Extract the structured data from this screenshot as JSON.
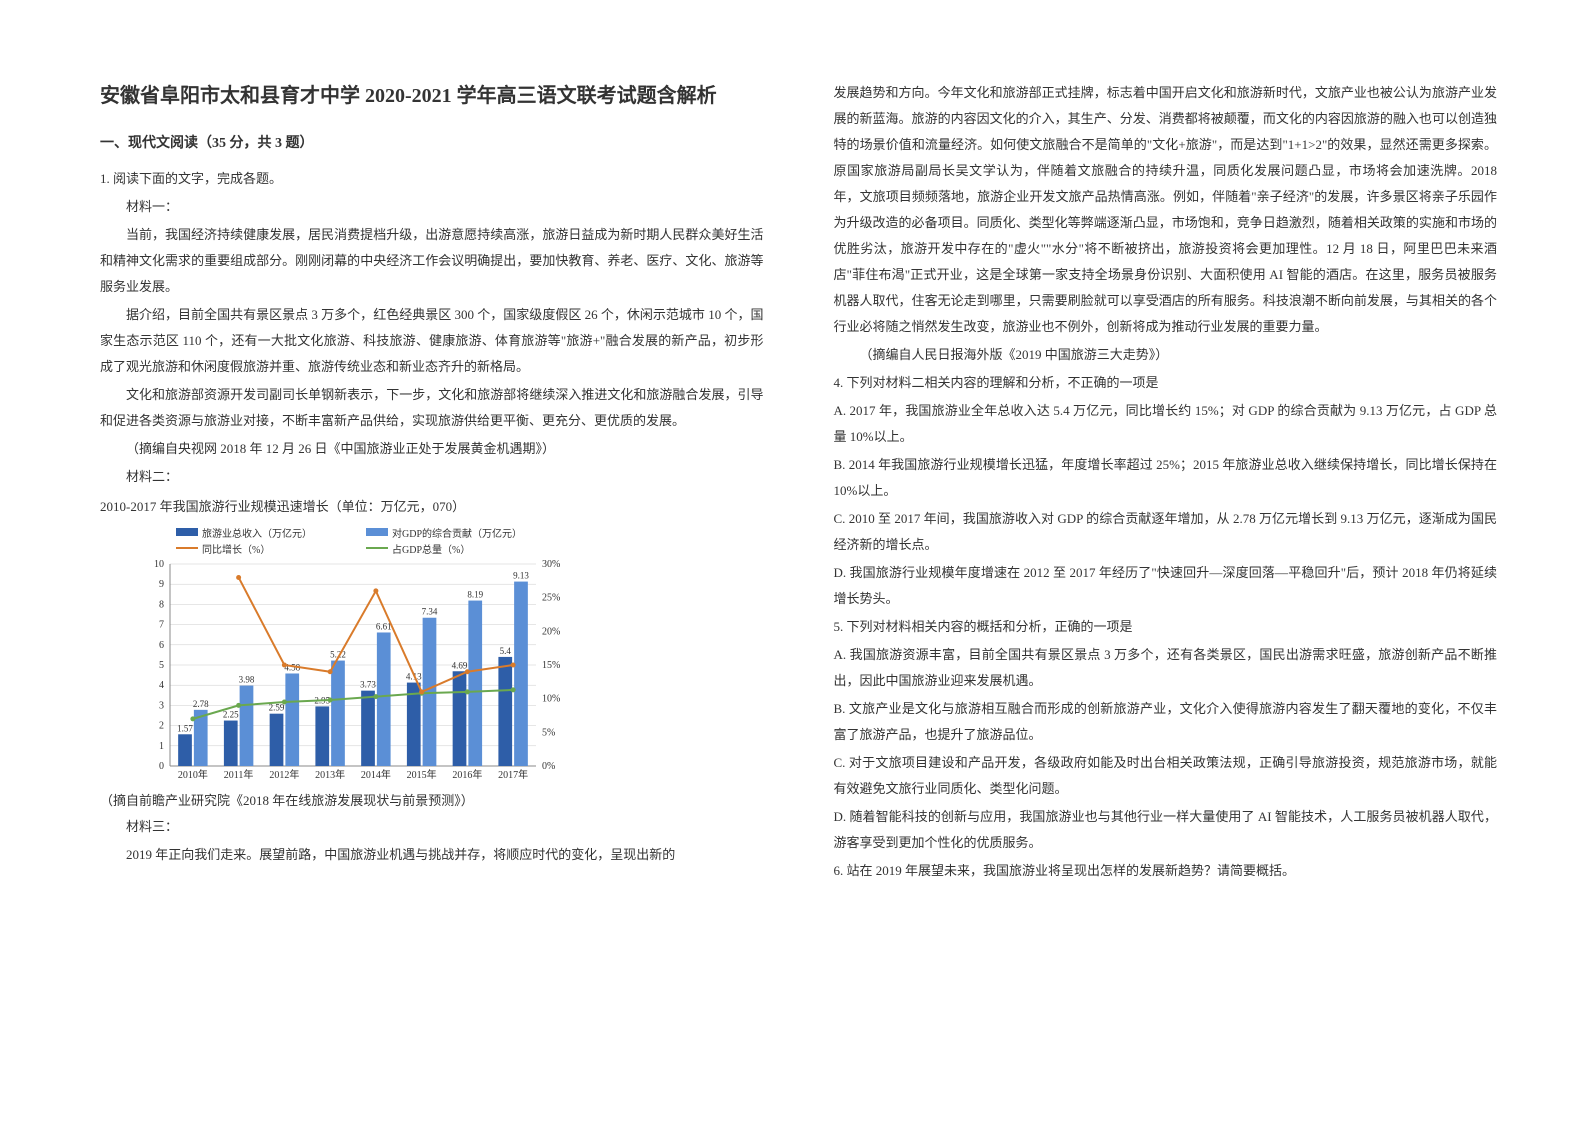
{
  "title": "安徽省阜阳市太和县育才中学 2020-2021 学年高三语文联考试题含解析",
  "section1": "一、现代文阅读（35 分，共 3 题）",
  "q1_intro": "1. 阅读下面的文字，完成各题。",
  "m1_label": "材料一：",
  "m1_p1": "当前，我国经济持续健康发展，居民消费提档升级，出游意愿持续高涨，旅游日益成为新时期人民群众美好生活和精神文化需求的重要组成部分。刚刚闭幕的中央经济工作会议明确提出，要加快教育、养老、医疗、文化、旅游等服务业发展。",
  "m1_p2": "据介绍，目前全国共有景区景点 3 万多个，红色经典景区 300 个，国家级度假区 26 个，休闲示范城市 10 个，国家生态示范区 110 个，还有一大批文化旅游、科技旅游、健康旅游、体育旅游等\"旅游+\"融合发展的新产品，初步形成了观光旅游和休闲度假旅游并重、旅游传统业态和新业态齐升的新格局。",
  "m1_p3": "文化和旅游部资源开发司副司长单钢新表示，下一步，文化和旅游部将继续深入推进文化和旅游融合发展，引导和促进各类资源与旅游业对接，不断丰富新产品供给，实现旅游供给更平衡、更充分、更优质的发展。",
  "m1_cite": "（摘编自央视网 2018 年 12 月 26 日《中国旅游业正处于发展黄金机遇期》）",
  "m2_label": "材料二：",
  "m2_caption": "2010-2017 年我国旅游行业规模迅速增长（单位：万亿元，070）",
  "m2_cite": "（摘自前瞻产业研究院《2018 年在线旅游发展现状与前景预测》）",
  "m3_label": "材料三：",
  "m3_p1_left": "2019 年正向我们走来。展望前路，中国旅游业机遇与挑战并存，将顺应时代的变化，呈现出新的",
  "m3_p1_right": "发展趋势和方向。今年文化和旅游部正式挂牌，标志着中国开启文化和旅游新时代，文旅产业也被公认为旅游产业发展的新蓝海。旅游的内容因文化的介入，其生产、分发、消费都将被颠覆，而文化的内容因旅游的融入也可以创造独特的场景价值和流量经济。如何使文旅融合不是简单的\"文化+旅游\"，而是达到\"1+1>2\"的效果，显然还需更多探索。原国家旅游局副局长吴文学认为，伴随着文旅融合的持续升温，同质化发展问题凸显，市场将会加速洗牌。2018 年，文旅项目频频落地，旅游企业开发文旅产品热情高涨。例如，伴随着\"亲子经济\"的发展，许多景区将亲子乐园作为升级改造的必备项目。同质化、类型化等弊端逐渐凸显，市场饱和，竞争日趋激烈，随着相关政策的实施和市场的优胜劣汰，旅游开发中存在的\"虚火\"\"水分\"将不断被挤出，旅游投资将会更加理性。12 月 18 日，阿里巴巴未来酒店\"菲住布渴\"正式开业，这是全球第一家支持全场景身份识别、大面积使用 AI 智能的酒店。在这里，服务员被服务机器人取代，住客无论走到哪里，只需要刷脸就可以享受酒店的所有服务。科技浪潮不断向前发展，与其相关的各个行业必将随之悄然发生改变，旅游业也不例外，创新将成为推动行业发展的重要力量。",
  "m3_cite": "（摘编自人民日报海外版《2019 中国旅游三大走势》）",
  "q4": "4. 下列对材料二相关内容的理解和分析，不正确的一项是",
  "q4_A": "A. 2017 年，我国旅游业全年总收入达 5.4 万亿元，同比增长约 15%；对 GDP 的综合贡献为 9.13 万亿元，占 GDP 总量 10%以上。",
  "q4_B": "B. 2014 年我国旅游行业规模增长迅猛，年度增长率超过 25%；2015 年旅游业总收入继续保持增长，同比增长保持在 10%以上。",
  "q4_C": "C. 2010 至 2017 年间，我国旅游收入对 GDP 的综合贡献逐年增加，从 2.78 万亿元增长到 9.13 万亿元，逐渐成为国民经济新的增长点。",
  "q4_D": "D. 我国旅游行业规模年度增速在 2012 至 2017 年经历了\"快速回升—深度回落—平稳回升\"后，预计 2018 年仍将延续增长势头。",
  "q5": "5. 下列对材料相关内容的概括和分析，正确的一项是",
  "q5_A": "A. 我国旅游资源丰富，目前全国共有景区景点 3 万多个，还有各类景区，国民出游需求旺盛，旅游创新产品不断推出，因此中国旅游业迎来发展机遇。",
  "q5_B": "B. 文旅产业是文化与旅游相互融合而形成的创新旅游产业，文化介入使得旅游内容发生了翻天覆地的变化，不仅丰富了旅游产品，也提升了旅游品位。",
  "q5_C": "C. 对于文旅项目建设和产品开发，各级政府如能及时出台相关政策法规，正确引导旅游投资，规范旅游市场，就能有效避免文旅行业同质化、类型化问题。",
  "q5_D": "D. 随着智能科技的创新与应用，我国旅游业也与其他行业一样大量使用了 AI 智能技术，人工服务员被机器人取代，游客享受到更加个性化的优质服务。",
  "q6": "6. 站在 2019 年展望未来，我国旅游业将呈现出怎样的发展新趋势？请简要概括。",
  "chart": {
    "type": "combo-bar-line",
    "years": [
      "2010年",
      "2011年",
      "2012年",
      "2013年",
      "2014年",
      "2015年",
      "2016年",
      "2017年"
    ],
    "legend": {
      "bar1": "旅游业总收入（万亿元）",
      "bar2": "对GDP的综合贡献（万亿元）",
      "line1": "同比增长（%）",
      "line2": "占GDP总量（%）"
    },
    "bar1_values": [
      1.57,
      2.25,
      2.59,
      2.95,
      3.73,
      4.13,
      4.69,
      5.4
    ],
    "bar2_values": [
      2.78,
      3.98,
      4.58,
      5.22,
      6.61,
      7.34,
      8.19,
      9.13
    ],
    "yleft_max": 10,
    "yleft_step": 1,
    "yright_max": 30,
    "yright_step": 5,
    "colors": {
      "bar1": "#2e5ea8",
      "bar2": "#5b8fd6",
      "line1": "#d97b2b",
      "line2": "#6aa84f",
      "grid": "#cccccc",
      "axis": "#888888",
      "text": "#333333",
      "bg": "#ffffff"
    },
    "fontsize_axis": 10,
    "fontsize_legend": 10
  }
}
